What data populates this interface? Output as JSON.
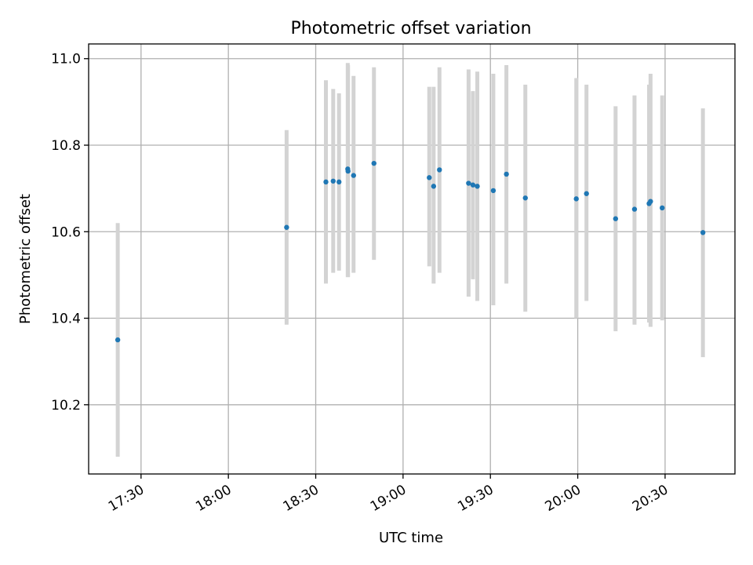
{
  "chart_data": {
    "type": "scatter",
    "title": "Photometric offset variation",
    "xlabel": "UTC time",
    "ylabel": "Photometric offset",
    "grid": true,
    "xlim": [
      "17:12",
      "20:54"
    ],
    "ylim": [
      10.04,
      11.034
    ],
    "x_ticks": [
      "17:30",
      "18:00",
      "18:30",
      "19:00",
      "19:30",
      "20:00",
      "20:30"
    ],
    "y_ticks": [
      10.2,
      10.4,
      10.6,
      10.8,
      11.0
    ],
    "y_tick_labels": [
      "10.2",
      "10.4",
      "10.6",
      "10.8",
      "11.0"
    ],
    "colors": {
      "marker": "#1f77b4",
      "errorbar": "#d3d3d3",
      "grid": "#b0b0b0"
    },
    "points": [
      {
        "x": "17:22",
        "y": 10.35,
        "ylow": 10.08,
        "yhigh": 10.62
      },
      {
        "x": "18:20",
        "y": 10.61,
        "ylow": 10.385,
        "yhigh": 10.835
      },
      {
        "x": "18:33.5",
        "y": 10.715,
        "ylow": 10.48,
        "yhigh": 10.95
      },
      {
        "x": "18:36",
        "y": 10.717,
        "ylow": 10.505,
        "yhigh": 10.93
      },
      {
        "x": "18:38",
        "y": 10.715,
        "ylow": 10.51,
        "yhigh": 10.92
      },
      {
        "x": "18:41",
        "y": 10.745,
        "ylow": 10.495,
        "yhigh": 10.99
      },
      {
        "x": "18:41.1",
        "y": 10.74,
        "ylow": 10.495,
        "yhigh": 10.985
      },
      {
        "x": "18:43",
        "y": 10.73,
        "ylow": 10.505,
        "yhigh": 10.96
      },
      {
        "x": "18:50",
        "y": 10.758,
        "ylow": 10.535,
        "yhigh": 10.98
      },
      {
        "x": "19:09",
        "y": 10.725,
        "ylow": 10.52,
        "yhigh": 10.935
      },
      {
        "x": "19:10.5",
        "y": 10.705,
        "ylow": 10.48,
        "yhigh": 10.935
      },
      {
        "x": "19:12.5",
        "y": 10.743,
        "ylow": 10.505,
        "yhigh": 10.98
      },
      {
        "x": "19:22.5",
        "y": 10.712,
        "ylow": 10.45,
        "yhigh": 10.975
      },
      {
        "x": "19:24",
        "y": 10.708,
        "ylow": 10.49,
        "yhigh": 10.925
      },
      {
        "x": "19:25.5",
        "y": 10.705,
        "ylow": 10.44,
        "yhigh": 10.97
      },
      {
        "x": "19:31",
        "y": 10.695,
        "ylow": 10.43,
        "yhigh": 10.965
      },
      {
        "x": "19:35.5",
        "y": 10.733,
        "ylow": 10.48,
        "yhigh": 10.985
      },
      {
        "x": "19:42",
        "y": 10.678,
        "ylow": 10.415,
        "yhigh": 10.94
      },
      {
        "x": "19:59.5",
        "y": 10.676,
        "ylow": 10.4,
        "yhigh": 10.955
      },
      {
        "x": "20:03",
        "y": 10.688,
        "ylow": 10.44,
        "yhigh": 10.94
      },
      {
        "x": "20:13",
        "y": 10.63,
        "ylow": 10.37,
        "yhigh": 10.89
      },
      {
        "x": "20:19.5",
        "y": 10.652,
        "ylow": 10.385,
        "yhigh": 10.915
      },
      {
        "x": "20:24.5",
        "y": 10.665,
        "ylow": 10.39,
        "yhigh": 10.94
      },
      {
        "x": "20:25",
        "y": 10.67,
        "ylow": 10.38,
        "yhigh": 10.965
      },
      {
        "x": "20:29",
        "y": 10.655,
        "ylow": 10.395,
        "yhigh": 10.915
      },
      {
        "x": "20:43",
        "y": 10.598,
        "ylow": 10.31,
        "yhigh": 10.885
      }
    ]
  }
}
